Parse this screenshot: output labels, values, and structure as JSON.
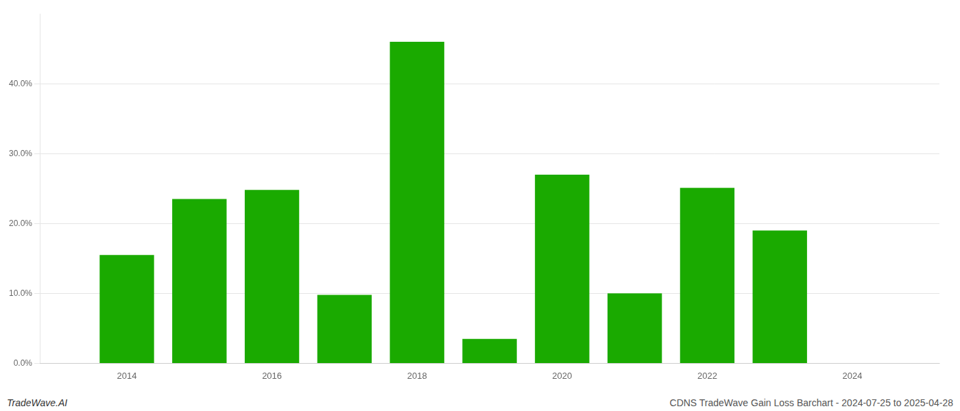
{
  "chart_data": {
    "type": "bar",
    "x": [
      2014,
      2015,
      2016,
      2017,
      2018,
      2019,
      2020,
      2021,
      2022,
      2023,
      2024
    ],
    "values": [
      0.155,
      0.235,
      0.248,
      0.098,
      0.46,
      0.035,
      0.27,
      0.1,
      0.251,
      0.19,
      0.0
    ],
    "color": "#1aaa00",
    "xlim": [
      2012.8,
      2025.2
    ],
    "xticks": [
      2014,
      2016,
      2018,
      2020,
      2022,
      2024
    ],
    "ylim": [
      0,
      0.5
    ],
    "yticks": [
      {
        "value": 0.0,
        "label": "0.0%"
      },
      {
        "value": 0.1,
        "label": "10.0%"
      },
      {
        "value": 0.2,
        "label": "20.0%"
      },
      {
        "value": 0.3,
        "label": "30.0%"
      },
      {
        "value": 0.4,
        "label": "40.0%"
      }
    ],
    "grid": "y",
    "annotations": [
      "TradeWave.AI",
      "CDNS TradeWave Gain Loss Barchart - 2024-07-25 to 2025-04-28"
    ]
  }
}
